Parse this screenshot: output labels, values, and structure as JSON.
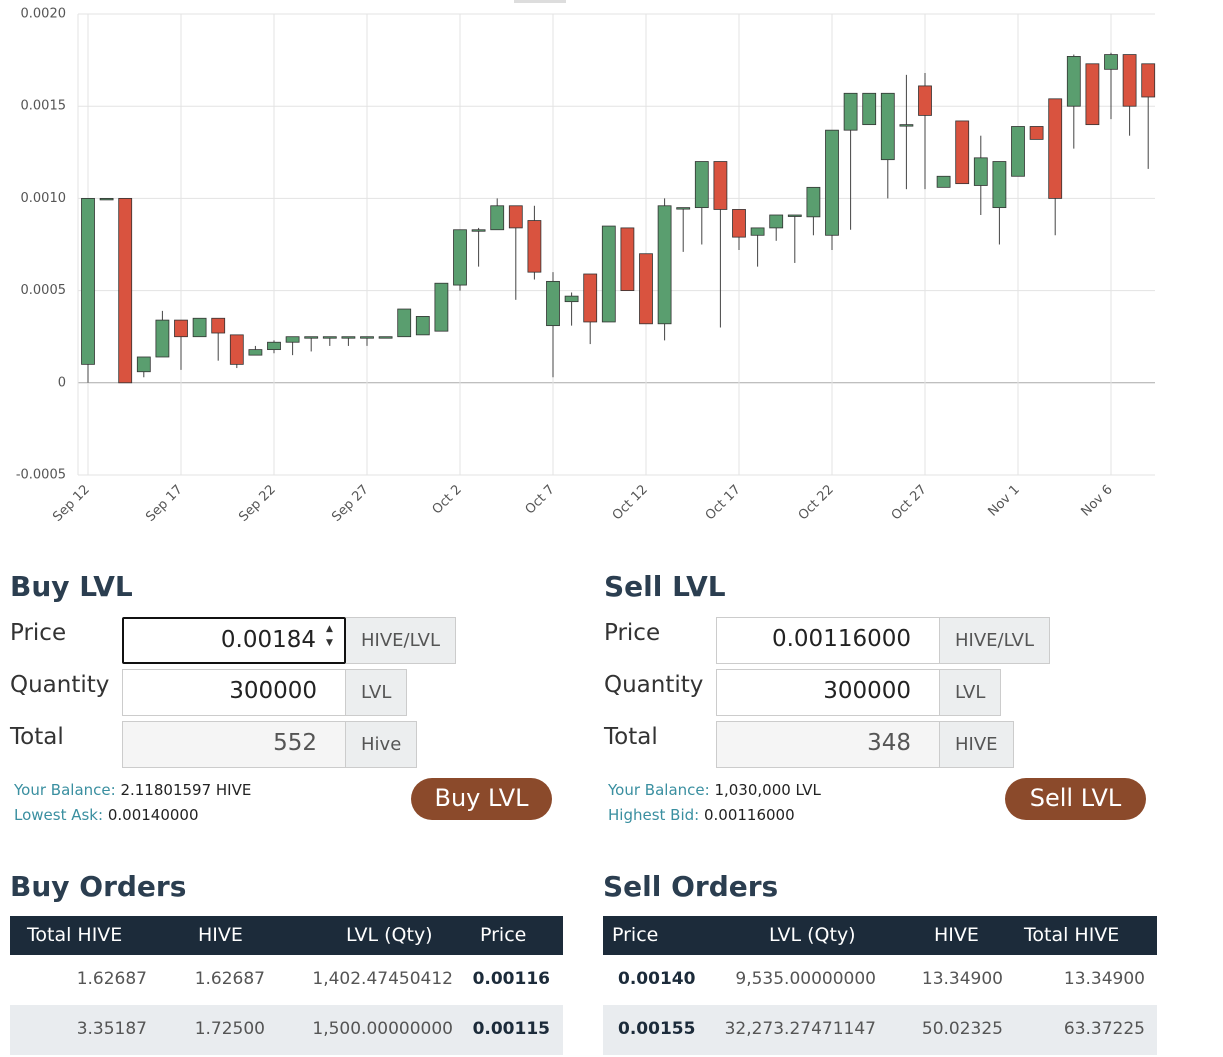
{
  "chart_data": {
    "type": "candlestick",
    "categories": [
      "Sep 12",
      null,
      null,
      null,
      null,
      "Sep 17",
      null,
      null,
      null,
      null,
      "Sep 22",
      null,
      null,
      null,
      null,
      "Sep 27",
      null,
      null,
      null,
      null,
      "Oct 2",
      null,
      null,
      null,
      null,
      "Oct 7",
      null,
      null,
      null,
      null,
      "Oct 12",
      null,
      null,
      null,
      null,
      "Oct 17",
      null,
      null,
      null,
      null,
      "Oct 22",
      null,
      null,
      null,
      null,
      "Oct 27",
      null,
      null,
      null,
      null,
      "Nov 1",
      null,
      null,
      null,
      null,
      "Nov 6",
      null,
      null
    ],
    "open": [
      0.0001,
      0.001,
      0.001,
      6e-05,
      0.00014,
      0.00034,
      0.00025,
      0.00035,
      0.00026,
      0.00015,
      0.00018,
      0.00022,
      0.00025,
      0.00025,
      0.00025,
      0.00025,
      0.00025,
      0.00025,
      0.00026,
      0.00028,
      0.00053,
      0.00083,
      0.00083,
      0.00096,
      0.00088,
      0.00031,
      0.00044,
      0.00059,
      0.00033,
      0.00084,
      0.0007,
      0.00032,
      0.00095,
      0.00095,
      0.0012,
      0.00094,
      0.0008,
      0.00084,
      0.00091,
      0.0009,
      0.0008,
      0.00137,
      0.0014,
      0.00121,
      0.0014,
      0.00161,
      0.00106,
      0.00142,
      0.00107,
      0.00095,
      0.00112,
      0.00139,
      0.00154,
      0.0015,
      0.00173,
      0.0017,
      0.00178,
      0.00173
    ],
    "high": [
      0.001,
      0.001,
      0.001,
      0.00014,
      0.00039,
      0.00034,
      0.00035,
      0.00035,
      0.00026,
      0.0002,
      0.00023,
      0.00025,
      0.00025,
      0.00025,
      0.00025,
      0.00025,
      0.00025,
      0.0004,
      0.00036,
      0.00054,
      0.00083,
      0.00084,
      0.001,
      0.00096,
      0.00096,
      0.0006,
      0.00049,
      0.00059,
      0.00085,
      0.00084,
      0.0007,
      0.001,
      0.00095,
      0.0012,
      0.0012,
      0.00094,
      0.00084,
      0.00091,
      0.00091,
      0.00106,
      0.00137,
      0.00157,
      0.00157,
      0.00157,
      0.00167,
      0.00168,
      0.00112,
      0.00142,
      0.00134,
      0.0012,
      0.00139,
      0.00139,
      0.00154,
      0.00178,
      0.00173,
      0.00179,
      0.00178,
      0.00173
    ],
    "low": [
      0,
      0.001,
      0,
      3e-05,
      0.00014,
      7e-05,
      0.00025,
      0.00012,
      8e-05,
      0.00015,
      0.00016,
      0.00015,
      0.00017,
      0.0002,
      0.0002,
      0.0002,
      0.00025,
      0.00025,
      0.00026,
      0.00028,
      0.0005,
      0.00063,
      0.00083,
      0.00045,
      0.00056,
      3e-05,
      0.00031,
      0.00021,
      0.00033,
      0.0005,
      0.00032,
      0.00023,
      0.00071,
      0.00075,
      0.0003,
      0.00072,
      0.00063,
      0.00077,
      0.00065,
      0.0008,
      0.00072,
      0.00083,
      0.0014,
      0.001,
      0.00105,
      0.00105,
      0.00106,
      0.00108,
      0.00091,
      0.00075,
      0.00112,
      0.00132,
      0.0008,
      0.00127,
      0.0014,
      0.00143,
      0.00134,
      0.00116
    ],
    "close": [
      0.001,
      0.001,
      0,
      0.00014,
      0.00034,
      0.00025,
      0.00035,
      0.00027,
      0.0001,
      0.00018,
      0.00022,
      0.00025,
      0.00025,
      0.00025,
      0.00025,
      0.00025,
      0.00025,
      0.0004,
      0.00036,
      0.00054,
      0.00083,
      0.00083,
      0.00096,
      0.00084,
      0.0006,
      0.00055,
      0.00047,
      0.00033,
      0.00085,
      0.0005,
      0.00032,
      0.00096,
      0.00095,
      0.0012,
      0.00094,
      0.00079,
      0.00084,
      0.00091,
      0.00091,
      0.00106,
      0.00137,
      0.00157,
      0.00157,
      0.00157,
      0.0014,
      0.00145,
      0.00112,
      0.00108,
      0.00122,
      0.0012,
      0.00139,
      0.00132,
      0.001,
      0.00177,
      0.0014,
      0.00178,
      0.0015,
      0.00155
    ],
    "up_color": "#5a9e6f",
    "down_color": "#d9533f",
    "ylim": [
      -0.0005,
      0.002
    ],
    "yticks": [
      {
        "value": 0.002,
        "label": "0.0020"
      },
      0.0015,
      {
        "value": 0.001,
        "label": "0.0010"
      },
      0.0005,
      0,
      -0.0005
    ],
    "grid": true
  },
  "trade_panels": [
    {
      "title": "Buy LVL",
      "fields": [
        {
          "label": "Price",
          "value": "0.00184",
          "unit": "HIVE/LVL"
        },
        {
          "label": "Quantity",
          "value": "300000",
          "unit": "LVL"
        },
        {
          "label": "Total",
          "value": "552",
          "unit": "Hive"
        }
      ],
      "info": [
        {
          "label": "Your Balance:",
          "value": "2.11801597 HIVE"
        },
        {
          "label": "Lowest Ask:",
          "value": "0.00140000"
        }
      ],
      "button": "Buy LVL"
    },
    {
      "title": "Sell LVL",
      "fields": [
        {
          "label": "Price",
          "value": "0.00116000",
          "unit": "HIVE/LVL"
        },
        {
          "label": "Quantity",
          "value": "300000",
          "unit": "LVL"
        },
        {
          "label": "Total",
          "value": "348",
          "unit": "HIVE"
        }
      ],
      "info": [
        {
          "label": "Your Balance:",
          "value": "1,030,000 LVL"
        },
        {
          "label": "Highest Bid:",
          "value": "0.00116000"
        }
      ],
      "button": "Sell LVL"
    }
  ],
  "order_tables": [
    {
      "title": "Buy Orders",
      "columns": [
        "Total HIVE",
        "HIVE",
        "LVL (Qty)",
        "Price"
      ],
      "rows": [
        [
          "1.62687",
          "1.62687",
          "1,402.47450412",
          "0.00116"
        ],
        [
          "3.35187",
          "1.72500",
          "1,500.00000000",
          "0.00115"
        ]
      ]
    },
    {
      "title": "Sell Orders",
      "columns": [
        "Price",
        "LVL (Qty)",
        "HIVE",
        "Total HIVE"
      ],
      "rows": [
        [
          "0.00140",
          "9,535.00000000",
          "13.34900",
          "13.34900"
        ],
        [
          "0.00155",
          "32,273.27471147",
          "50.02325",
          "63.37225"
        ]
      ]
    }
  ]
}
